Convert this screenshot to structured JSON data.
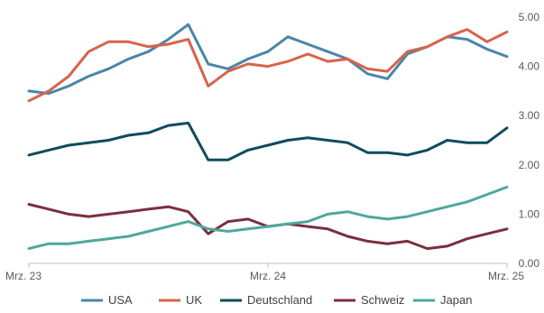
{
  "chart_data": {
    "type": "line",
    "x": [
      "2023-03",
      "2023-04",
      "2023-05",
      "2023-06",
      "2023-07",
      "2023-08",
      "2023-09",
      "2023-10",
      "2023-11",
      "2023-12",
      "2024-01",
      "2024-02",
      "2024-03",
      "2024-04",
      "2024-05",
      "2024-06",
      "2024-07",
      "2024-08",
      "2024-09",
      "2024-10",
      "2024-11",
      "2024-12",
      "2025-01",
      "2025-02",
      "2025-03"
    ],
    "xticks": [
      {
        "x": "2023-03",
        "label": "Mrz. 23"
      },
      {
        "x": "2024-03",
        "label": "Mrz. 24"
      },
      {
        "x": "2025-03",
        "label": "Mrz. 25"
      }
    ],
    "yticks": [
      {
        "value": 0,
        "label": "0.00"
      },
      {
        "value": 1,
        "label": "1.00"
      },
      {
        "value": 2,
        "label": "2.00"
      },
      {
        "value": 3,
        "label": "3.00"
      },
      {
        "value": 4,
        "label": "4.00"
      },
      {
        "value": 5,
        "label": "5.00"
      }
    ],
    "ylim": [
      0,
      5
    ],
    "y_axis_position": "right",
    "grid": false,
    "legend_position": "bottom",
    "series": [
      {
        "name": "USA",
        "color": "#4a86a8",
        "values": [
          3.5,
          3.45,
          3.6,
          3.8,
          3.95,
          4.15,
          4.3,
          4.55,
          4.85,
          4.05,
          3.95,
          4.15,
          4.3,
          4.6,
          4.45,
          4.3,
          4.15,
          3.85,
          3.75,
          4.25,
          4.4,
          4.6,
          4.55,
          4.35,
          4.2
        ]
      },
      {
        "name": "UK",
        "color": "#d9634a",
        "values": [
          3.3,
          3.5,
          3.8,
          4.3,
          4.5,
          4.5,
          4.4,
          4.45,
          4.55,
          3.6,
          3.9,
          4.05,
          4.0,
          4.1,
          4.25,
          4.1,
          4.15,
          3.95,
          3.9,
          4.3,
          4.4,
          4.6,
          4.75,
          4.5,
          4.7
        ]
      },
      {
        "name": "Deutschland",
        "color": "#0f4c5c",
        "values": [
          2.2,
          2.3,
          2.4,
          2.45,
          2.5,
          2.6,
          2.65,
          2.8,
          2.85,
          2.1,
          2.1,
          2.3,
          2.4,
          2.5,
          2.55,
          2.5,
          2.45,
          2.25,
          2.25,
          2.2,
          2.3,
          2.5,
          2.45,
          2.45,
          2.75
        ]
      },
      {
        "name": "Schweiz",
        "color": "#7b2f3e",
        "values": [
          1.2,
          1.1,
          1.0,
          0.95,
          1.0,
          1.05,
          1.1,
          1.15,
          1.05,
          0.6,
          0.85,
          0.9,
          0.75,
          0.8,
          0.75,
          0.7,
          0.55,
          0.45,
          0.4,
          0.45,
          0.3,
          0.35,
          0.5,
          0.6,
          0.7
        ]
      },
      {
        "name": "Japan",
        "color": "#4fa89a",
        "values": [
          0.3,
          0.4,
          0.4,
          0.45,
          0.5,
          0.55,
          0.65,
          0.75,
          0.85,
          0.7,
          0.65,
          0.7,
          0.75,
          0.8,
          0.85,
          1.0,
          1.05,
          0.95,
          0.9,
          0.95,
          1.05,
          1.15,
          1.25,
          1.4,
          1.55
        ]
      }
    ]
  }
}
